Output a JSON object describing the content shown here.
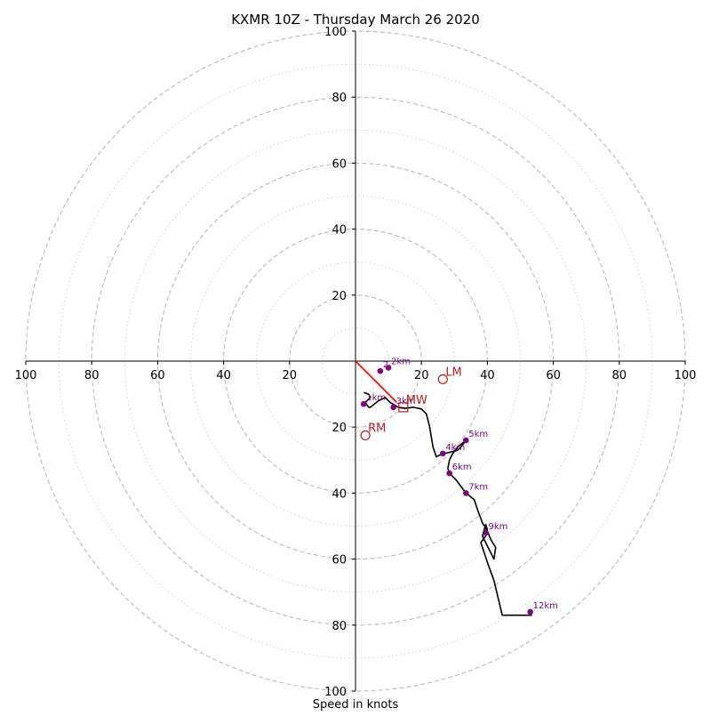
{
  "chart_data": {
    "type": "hodograph",
    "title": "KXMR 10Z - Thursday March 26 2020",
    "xlabel": "Speed in knots",
    "ylabel": "",
    "xlim": [
      -100,
      100
    ],
    "ylim": [
      -100,
      100
    ],
    "grid": true,
    "x_ticks": [
      "100",
      "80",
      "60",
      "40",
      "20",
      "20",
      "40",
      "60",
      "80",
      "100"
    ],
    "x_tick_values": [
      -100,
      -80,
      -60,
      -40,
      -20,
      20,
      40,
      60,
      80,
      100
    ],
    "y_ticks": [
      "100",
      "80",
      "60",
      "40",
      "20",
      "20",
      "40",
      "60",
      "80",
      "100"
    ],
    "y_tick_values": [
      100,
      80,
      60,
      40,
      20,
      -20,
      -40,
      -60,
      -80,
      -100
    ],
    "rings_dashed": [
      20,
      40,
      60,
      80,
      100
    ],
    "rings_dotted": [
      10,
      30,
      50,
      70,
      90
    ],
    "colors": {
      "trace": "#000000",
      "markers": "#800080",
      "labels": "#800080",
      "storm_motion": "#b22222",
      "shear_vector": "#ff0000",
      "grid": "#bbbbbb"
    },
    "trace": [
      [
        2.5,
        -9.5
      ],
      [
        4,
        -10
      ],
      [
        4.5,
        -11
      ],
      [
        3,
        -12.5
      ],
      [
        4,
        -14
      ],
      [
        4.5,
        -14
      ],
      [
        7,
        -12
      ],
      [
        9,
        -11
      ],
      [
        10.5,
        -12.5
      ],
      [
        13,
        -14
      ],
      [
        15,
        -14.3
      ],
      [
        17.5,
        -14
      ],
      [
        20,
        -14.5
      ],
      [
        21.5,
        -16
      ],
      [
        22.5,
        -20
      ],
      [
        23,
        -23
      ],
      [
        23.5,
        -26
      ],
      [
        24.5,
        -29
      ],
      [
        25.5,
        -28.5
      ],
      [
        27,
        -28
      ],
      [
        29,
        -27.5
      ],
      [
        31,
        -27
      ],
      [
        32,
        -26
      ],
      [
        33.5,
        -24
      ],
      [
        31,
        -26
      ],
      [
        29.5,
        -28
      ],
      [
        28.5,
        -30
      ],
      [
        28,
        -32.5
      ],
      [
        28.5,
        -34
      ],
      [
        30.5,
        -36
      ],
      [
        33.5,
        -40
      ],
      [
        36,
        -42
      ],
      [
        37,
        -45
      ],
      [
        38.5,
        -49
      ],
      [
        40,
        -51.5
      ],
      [
        41,
        -54
      ],
      [
        42.5,
        -56.5
      ],
      [
        42,
        -60
      ],
      [
        38.5,
        -53
      ],
      [
        39.5,
        -49.5
      ],
      [
        40,
        -51
      ],
      [
        39.5,
        -53
      ],
      [
        38,
        -55
      ],
      [
        40,
        -61
      ],
      [
        42,
        -66.5
      ],
      [
        44.5,
        -77
      ],
      [
        53.5,
        -77
      ]
    ],
    "height_markers": [
      {
        "label": "1km",
        "u": 2.5,
        "v": -13
      },
      {
        "label": "2km",
        "u": 10,
        "v": -2
      },
      {
        "label": "3km",
        "u": 11.5,
        "v": -14
      },
      {
        "label": "4km",
        "u": 26.5,
        "v": -28
      },
      {
        "label": "5km",
        "u": 33.5,
        "v": -24
      },
      {
        "label": "6km",
        "u": 28.5,
        "v": -34
      },
      {
        "label": "7km",
        "u": 33.5,
        "v": -40
      },
      {
        "label": "9km",
        "u": 39.5,
        "v": -52
      },
      {
        "label": "12km",
        "u": 53,
        "v": -76
      },
      {
        "label": "2",
        "u": 7.5,
        "v": -3
      }
    ],
    "storm_motion": [
      {
        "label": "LM",
        "u": 26.5,
        "v": -5.5,
        "marker": "circle"
      },
      {
        "label": "MW",
        "u": 14.5,
        "v": -14,
        "marker": "square"
      },
      {
        "label": "RM",
        "u": 3,
        "v": -22.5,
        "marker": "circle"
      }
    ],
    "shear_vector": {
      "from": [
        0,
        0
      ],
      "to": [
        12.5,
        -12.5
      ]
    }
  }
}
